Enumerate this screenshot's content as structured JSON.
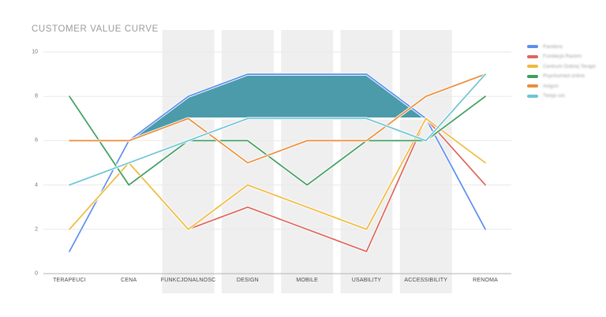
{
  "title": "CUSTOMER VALUE CURVE",
  "chart_data": {
    "type": "line",
    "title": "CUSTOMER VALUE CURVE",
    "categories": [
      "TERAPEUCI",
      "CENA",
      "FUNKCJONALNOSC",
      "DESIGN",
      "MOBILE",
      "USABILITY",
      "ACCESSIBILITY",
      "RENOMA"
    ],
    "series": [
      {
        "name": "Pandora",
        "color": "#5b8eef",
        "values": [
          1,
          6,
          8,
          9,
          9,
          9,
          7,
          2
        ]
      },
      {
        "name": "Fundacja Razem",
        "color": "#dd655c",
        "values": [
          2,
          5,
          2,
          3,
          2,
          1,
          7,
          4
        ]
      },
      {
        "name": "Centrum Dobrej Terapii",
        "color": "#f0ba3c",
        "values": [
          2,
          5,
          2,
          4,
          3,
          2,
          7,
          5
        ]
      },
      {
        "name": "Psychomed online",
        "color": "#3f9e5d",
        "values": [
          8,
          4,
          6,
          6,
          4,
          6,
          6,
          8
        ]
      },
      {
        "name": "Avigon",
        "color": "#eb8d3a",
        "values": [
          6,
          6,
          7,
          5,
          6,
          6,
          8,
          9
        ]
      },
      {
        "name": "Twoja usł.",
        "color": "#6cc5d7",
        "values": [
          4,
          5,
          6,
          7,
          7,
          7,
          6,
          9
        ]
      }
    ],
    "area_band": {
      "description": "highlighted teal band between top curve and value 7 plateau",
      "start_category_index": 1,
      "high": [
        6,
        8,
        9,
        9,
        9,
        7
      ],
      "low": [
        6,
        7,
        7,
        7,
        7,
        7
      ],
      "color": "#4b9baa"
    },
    "highlight_columns": [
      "FUNKCJONALNOSC",
      "DESIGN",
      "MOBILE",
      "USABILITY",
      "ACCESSIBILITY"
    ],
    "ylim": [
      0,
      10
    ],
    "yticks": [
      "0",
      "2",
      "4",
      "6",
      "8",
      "10"
    ],
    "xlabel": "",
    "ylabel": "",
    "grid": true,
    "legend_position": "right",
    "legend_text_blurred": true
  },
  "legend": {
    "items": [
      {
        "label": "Pandora",
        "color": "#5b8eef"
      },
      {
        "label": "Fundacja Razem",
        "color": "#dd655c"
      },
      {
        "label": "Centrum Dobrej Terapii",
        "color": "#f0ba3c"
      },
      {
        "label": "Psychomed online",
        "color": "#3f9e5d"
      },
      {
        "label": "Avigon",
        "color": "#eb8d3a"
      },
      {
        "label": "Twoja usł.",
        "color": "#6cc5d7"
      }
    ]
  },
  "style_colors": {
    "band_background": "#efefef",
    "gridline": "#e9e9e9",
    "axis_line": "#b3b3b3",
    "title_text": "#9b9b9b",
    "tick_text": "#757575",
    "category_text": "#4a4a4a"
  }
}
